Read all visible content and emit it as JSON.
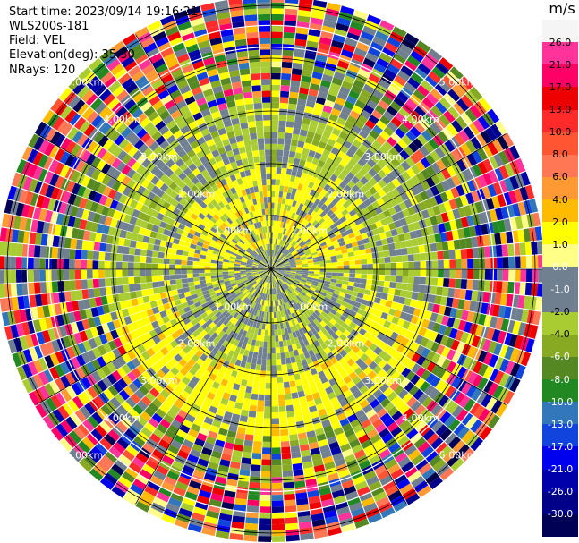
{
  "header": {
    "start_time": "Start time: 2023/09/14 19:16:21",
    "instrument": "WLS200s-181",
    "field": "Field: VEL",
    "elevation": "Elevation(deg): 35.30",
    "nrays": "NRays: 120"
  },
  "colorbar": {
    "unit": "m/s",
    "ticks": [
      "26.0",
      "21.0",
      "17.0",
      "13.0",
      "10.0",
      "8.0",
      "6.0",
      "4.0",
      "2.0",
      "1.0",
      "0.0",
      "-1.0",
      "-2.0",
      "-4.0",
      "-6.0",
      "-8.0",
      "-10.0",
      "-13.0",
      "-17.0",
      "-21.0",
      "-26.0",
      "-30.0"
    ],
    "colors": [
      "#f5f5f5",
      "#ff3399",
      "#ff0066",
      "#ee0000",
      "#ff2a2a",
      "#ff5533",
      "#ff7755",
      "#ff9933",
      "#ffbb00",
      "#ffff00",
      "#ffff88",
      "#708090",
      "#707f90",
      "#aacc33",
      "#88aa22",
      "#558822",
      "#228822",
      "#3377bb",
      "#1144dd",
      "#0000ee",
      "#0000aa",
      "#000088",
      "#000055"
    ]
  },
  "chart_data": {
    "type": "ppi",
    "field": "VEL",
    "elevation_deg": 35.3,
    "n_rays": 120,
    "range_ring_labels": [
      "1.00km",
      "2.00km",
      "3.00km",
      "4.00km",
      "5.00km"
    ],
    "value_range": [
      -30,
      26
    ]
  }
}
